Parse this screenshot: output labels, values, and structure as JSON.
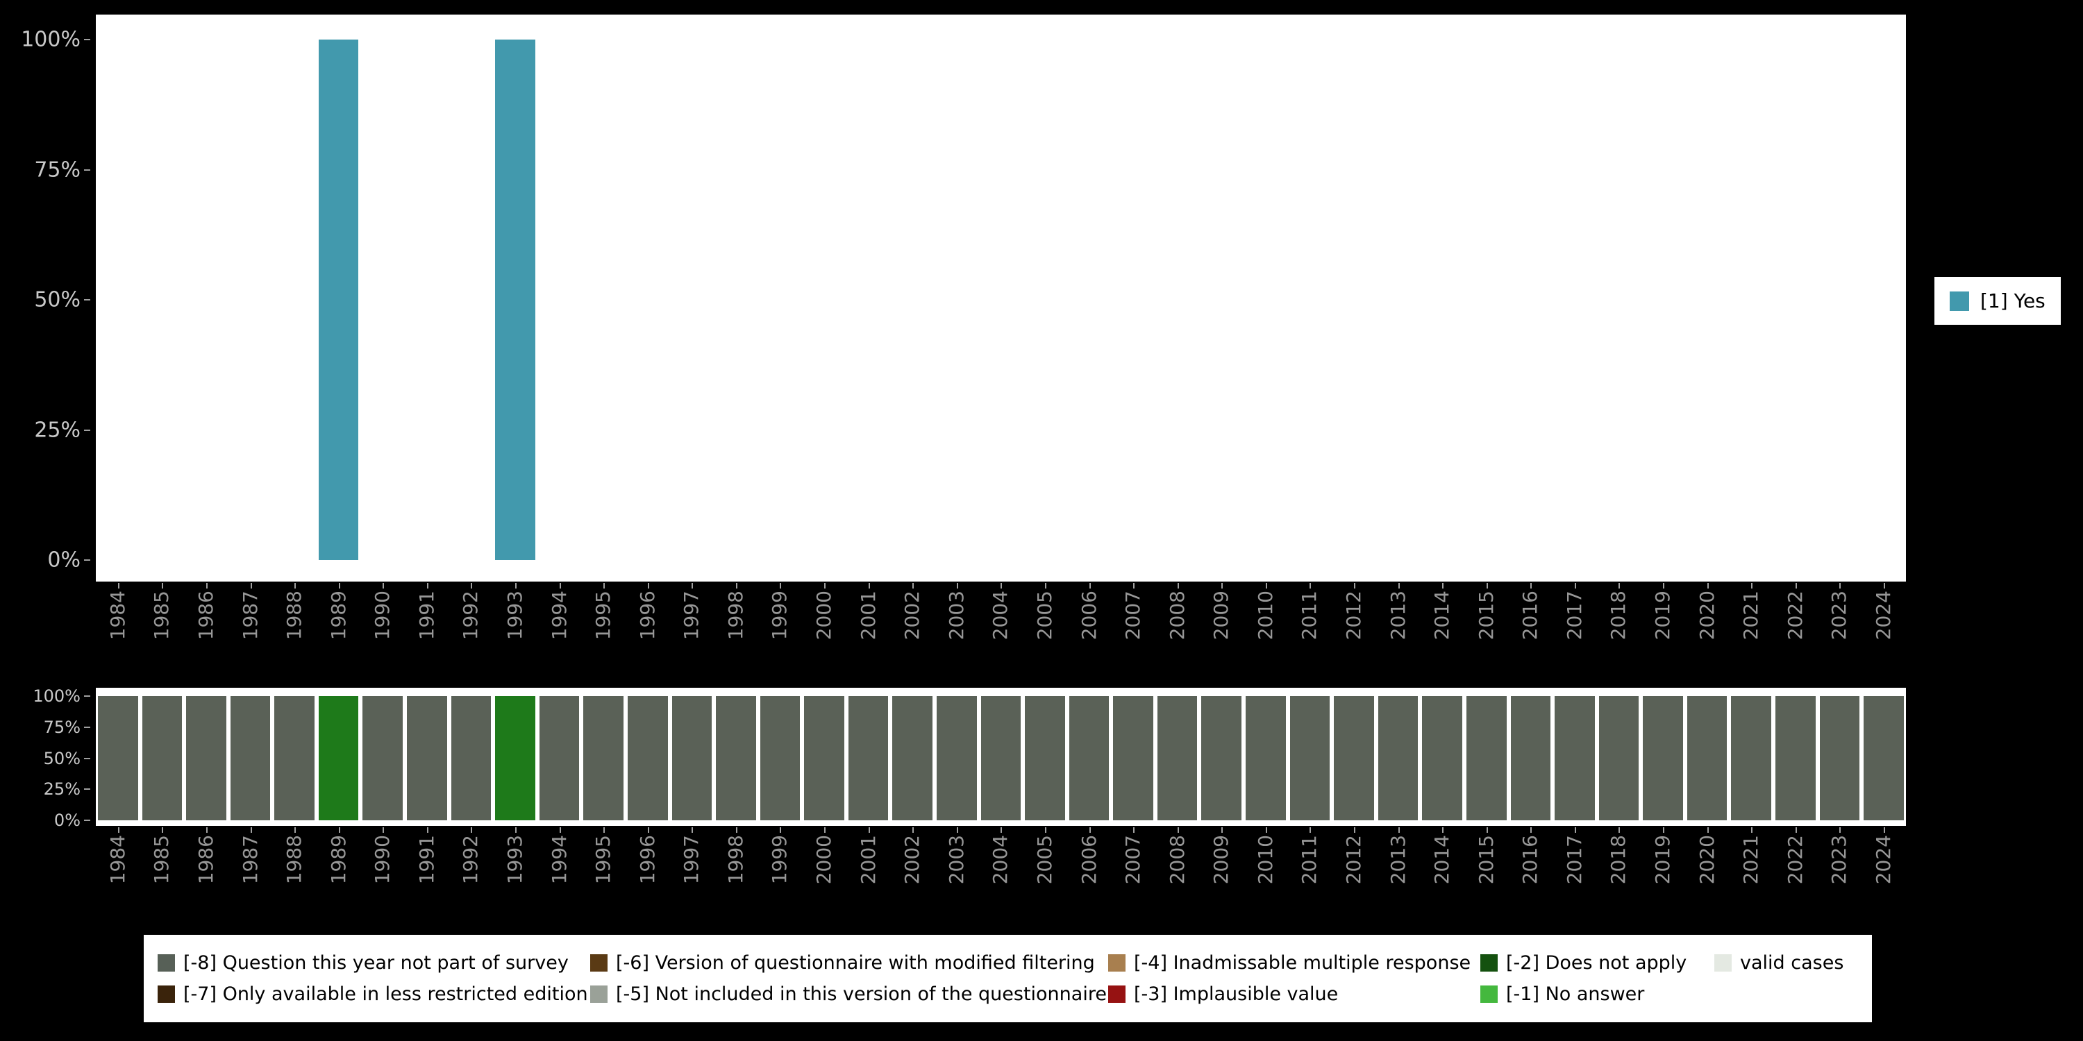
{
  "colors": {
    "page_bg": "#000000",
    "plot_bg": "#ffffff",
    "teal": "#4299ad",
    "bar_gray": "#5a6157",
    "bar_green": "#1e7a1a",
    "axis_label": "#c9c9c9",
    "year_label": "#979797"
  },
  "years": [
    "1984",
    "1985",
    "1986",
    "1987",
    "1988",
    "1989",
    "1990",
    "1991",
    "1992",
    "1993",
    "1994",
    "1995",
    "1996",
    "1997",
    "1998",
    "1999",
    "2000",
    "2001",
    "2002",
    "2003",
    "2004",
    "2005",
    "2006",
    "2007",
    "2008",
    "2009",
    "2010",
    "2011",
    "2012",
    "2013",
    "2014",
    "2015",
    "2016",
    "2017",
    "2018",
    "2019",
    "2020",
    "2021",
    "2022",
    "2023",
    "2024"
  ],
  "chart_data": [
    {
      "id": "availability",
      "type": "bar",
      "title": "",
      "categories_key": "years",
      "series": [
        {
          "name": "[1] Yes",
          "color": "#4299ad",
          "values": [
            0,
            0,
            0,
            0,
            0,
            100,
            0,
            0,
            0,
            100,
            0,
            0,
            0,
            0,
            0,
            0,
            0,
            0,
            0,
            0,
            0,
            0,
            0,
            0,
            0,
            0,
            0,
            0,
            0,
            0,
            0,
            0,
            0,
            0,
            0,
            0,
            0,
            0,
            0,
            0,
            0
          ]
        }
      ],
      "ylim": [
        0,
        100
      ],
      "yticks": [
        "0%",
        "25%",
        "50%",
        "75%",
        "100%"
      ],
      "grid": false,
      "legend_position": "right"
    },
    {
      "id": "missing-values",
      "type": "bar",
      "title": "",
      "categories_key": "years",
      "values": [
        100,
        100,
        100,
        100,
        100,
        100,
        100,
        100,
        100,
        100,
        100,
        100,
        100,
        100,
        100,
        100,
        100,
        100,
        100,
        100,
        100,
        100,
        100,
        100,
        100,
        100,
        100,
        100,
        100,
        100,
        100,
        100,
        100,
        100,
        100,
        100,
        100,
        100,
        100,
        100,
        100
      ],
      "bar_color_default": "#5a6157",
      "bar_color_by_year": {
        "1989": "#1e7a1a",
        "1993": "#1e7a1a"
      },
      "ylim": [
        0,
        100
      ],
      "yticks": [
        "0%",
        "25%",
        "50%",
        "75%",
        "100%"
      ],
      "grid": false,
      "legend_position": "bottom"
    }
  ],
  "top_legend": {
    "items": [
      {
        "label": "[1] Yes",
        "color": "#4299ad"
      }
    ]
  },
  "bottom_legend": {
    "rows": [
      [
        {
          "label": "[-8] Question this year not part of survey",
          "color": "#576057"
        },
        {
          "label": "[-6] Version of questionnaire with modified filtering",
          "color": "#5a3a14"
        },
        {
          "label": "[-4] Inadmissable multiple response",
          "color": "#a87f4f"
        },
        {
          "label": "[-2] Does not apply",
          "color": "#14510f"
        },
        {
          "label": "valid cases",
          "color": "#e4e9e2"
        }
      ],
      [
        {
          "label": "[-7] Only available in less restricted edition",
          "color": "#3a230b"
        },
        {
          "label": "[-5] Not included in this version of the questionnaire",
          "color": "#9aa198"
        },
        {
          "label": "[-3] Implausible value",
          "color": "#961212"
        },
        {
          "label": "[-1] No answer",
          "color": "#44b83e"
        }
      ]
    ]
  }
}
